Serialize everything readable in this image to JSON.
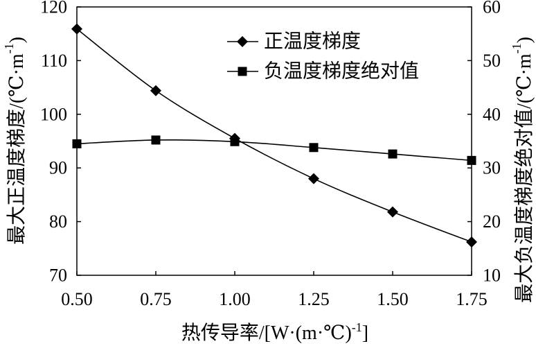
{
  "chart_data": {
    "type": "line",
    "x": [
      0.5,
      0.75,
      1.0,
      1.25,
      1.5,
      1.75
    ],
    "xlim": [
      0.5,
      1.75
    ],
    "x_ticks": [
      "0.50",
      "0.75",
      "1.00",
      "1.25",
      "1.50",
      "1.75"
    ],
    "xlabel": {
      "main": "热传导率/[W·(m·℃)",
      "sup": "-1",
      "tail": "]"
    },
    "y_left": {
      "label": {
        "main": "最大正温度梯度/(℃·m",
        "sup": "-1",
        "tail": ")"
      },
      "lim": [
        70,
        120
      ],
      "ticks": [
        "70",
        "80",
        "90",
        "100",
        "110",
        "120"
      ]
    },
    "y_right": {
      "label": {
        "main": "最大负温度梯度绝对值/(℃·m",
        "sup": "-1",
        "tail": ")"
      },
      "lim": [
        10,
        60
      ],
      "ticks": [
        "10",
        "20",
        "30",
        "40",
        "50",
        "60"
      ]
    },
    "series": [
      {
        "name": "正温度梯度",
        "axis": "left",
        "marker": "diamond",
        "values": [
          115.9,
          104.4,
          95.5,
          88.0,
          81.8,
          76.2
        ]
      },
      {
        "name": "负温度梯度绝对值",
        "axis": "right",
        "marker": "square",
        "values": [
          34.5,
          35.2,
          34.9,
          33.8,
          32.6,
          31.4
        ]
      }
    ],
    "legend": "top-center",
    "grid": false,
    "colors": {
      "line": "#000000",
      "marker": "#000000",
      "background": "#ffffff"
    }
  }
}
